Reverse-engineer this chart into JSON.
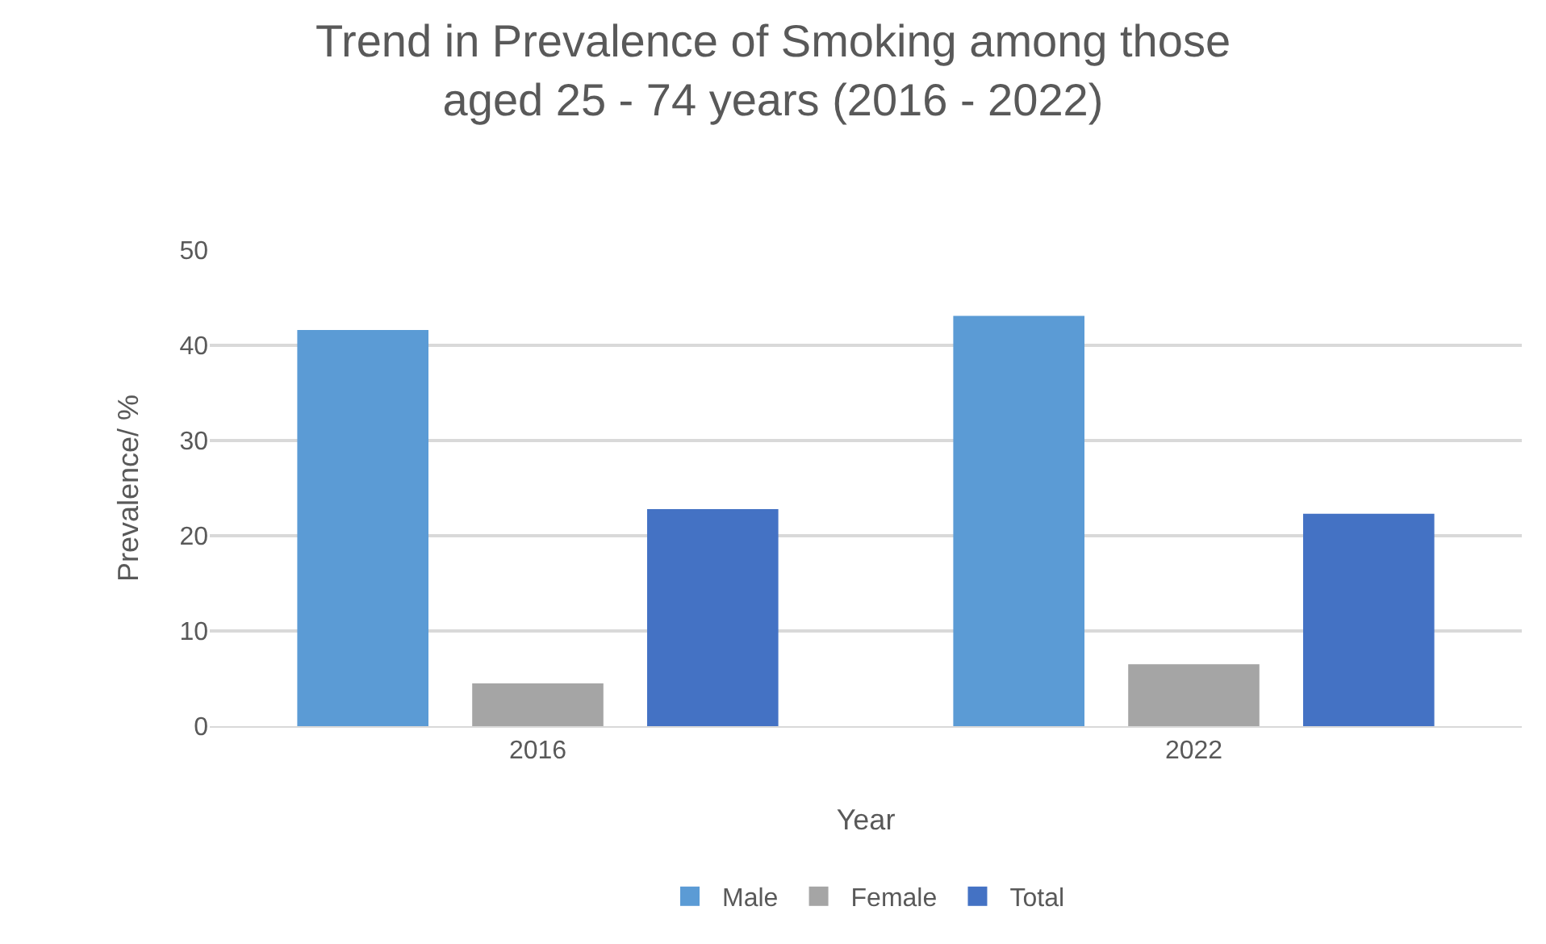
{
  "chart_data": {
    "type": "bar",
    "title": "Trend in Prevalence of Smoking among those\naged 25 - 74 years (2016 - 2022)",
    "xlabel": "Year",
    "ylabel": "Prevalence/ %",
    "categories": [
      "2016",
      "2022"
    ],
    "series": [
      {
        "name": "Male",
        "color": "#5b9bd5",
        "values": [
          41.6,
          43.1
        ]
      },
      {
        "name": "Female",
        "color": "#a5a5a5",
        "values": [
          4.5,
          6.5
        ]
      },
      {
        "name": "Total",
        "color": "#4472c4",
        "values": [
          22.8,
          22.3
        ]
      }
    ],
    "ylim": [
      0,
      50
    ],
    "yticks": [
      0,
      10,
      20,
      30,
      40,
      50
    ],
    "grid": "y",
    "legend": "bottom"
  }
}
